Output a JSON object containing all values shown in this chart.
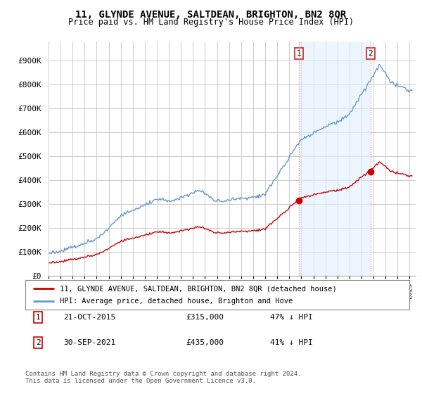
{
  "title": "11, GLYNDE AVENUE, SALTDEAN, BRIGHTON, BN2 8QR",
  "subtitle": "Price paid vs. HM Land Registry's House Price Index (HPI)",
  "ylabel_ticks": [
    "£0",
    "£100K",
    "£200K",
    "£300K",
    "£400K",
    "£500K",
    "£600K",
    "£700K",
    "£800K",
    "£900K"
  ],
  "ytick_values": [
    0,
    100000,
    200000,
    300000,
    400000,
    500000,
    600000,
    700000,
    800000,
    900000
  ],
  "ylim": [
    0,
    980000
  ],
  "xlim_start": 1995.0,
  "xlim_end": 2025.5,
  "sale1_x": 2015.81,
  "sale1_y": 315000,
  "sale1_label": "1",
  "sale2_x": 2021.75,
  "sale2_y": 435000,
  "sale2_label": "2",
  "hpi_color": "#6699cc",
  "hpi_fill_color": "#ddeeff",
  "price_color": "#cc0000",
  "vline_color": "#dd8888",
  "grid_color": "#cccccc",
  "background_color": "#ffffff",
  "legend_entry1": "11, GLYNDE AVENUE, SALTDEAN, BRIGHTON, BN2 8QR (detached house)",
  "legend_entry2": "HPI: Average price, detached house, Brighton and Hove",
  "annotation1_date": "21-OCT-2015",
  "annotation1_price": "£315,000",
  "annotation1_hpi": "47% ↓ HPI",
  "annotation2_date": "30-SEP-2021",
  "annotation2_price": "£435,000",
  "annotation2_hpi": "41% ↓ HPI",
  "footer": "Contains HM Land Registry data © Crown copyright and database right 2024.\nThis data is licensed under the Open Government Licence v3.0.",
  "title_fontsize": 10,
  "subtitle_fontsize": 9
}
